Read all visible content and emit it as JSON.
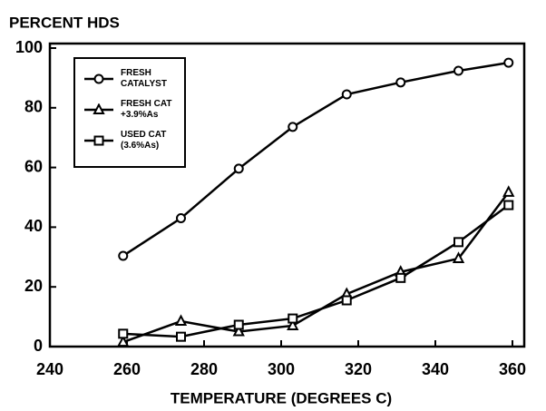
{
  "chart_data": {
    "type": "line",
    "title": "PERCENT HDS",
    "x_label": "TEMPERATURE (DEGREES C)",
    "x": [
      259,
      274,
      289,
      303,
      317,
      331,
      346,
      359
    ],
    "series": [
      {
        "name": "FRESH CATALYST",
        "color": "#000000",
        "marker": "circle",
        "values": [
          30.4,
          43,
          59.6,
          73.6,
          84.5,
          88.5,
          92.4,
          95.1
        ]
      },
      {
        "name": "FRESH CAT +3.9%As",
        "color": "#000000",
        "marker": "triangle",
        "values": [
          1.5,
          8.5,
          5,
          7,
          17.6,
          25,
          29.5,
          51.7
        ]
      },
      {
        "name": "USED CAT (3.6%As)",
        "color": "#000000",
        "marker": "square",
        "values": [
          4.3,
          3.3,
          7.3,
          9.4,
          15.5,
          23,
          35,
          47.4
        ]
      }
    ],
    "xlim": [
      240,
      360
    ],
    "xticks": [
      240,
      260,
      280,
      300,
      320,
      340,
      360
    ],
    "ylim": [
      0,
      100
    ],
    "yticks": [
      0,
      20,
      40,
      60,
      80,
      100
    ],
    "grid": false,
    "legend": "upper left"
  }
}
